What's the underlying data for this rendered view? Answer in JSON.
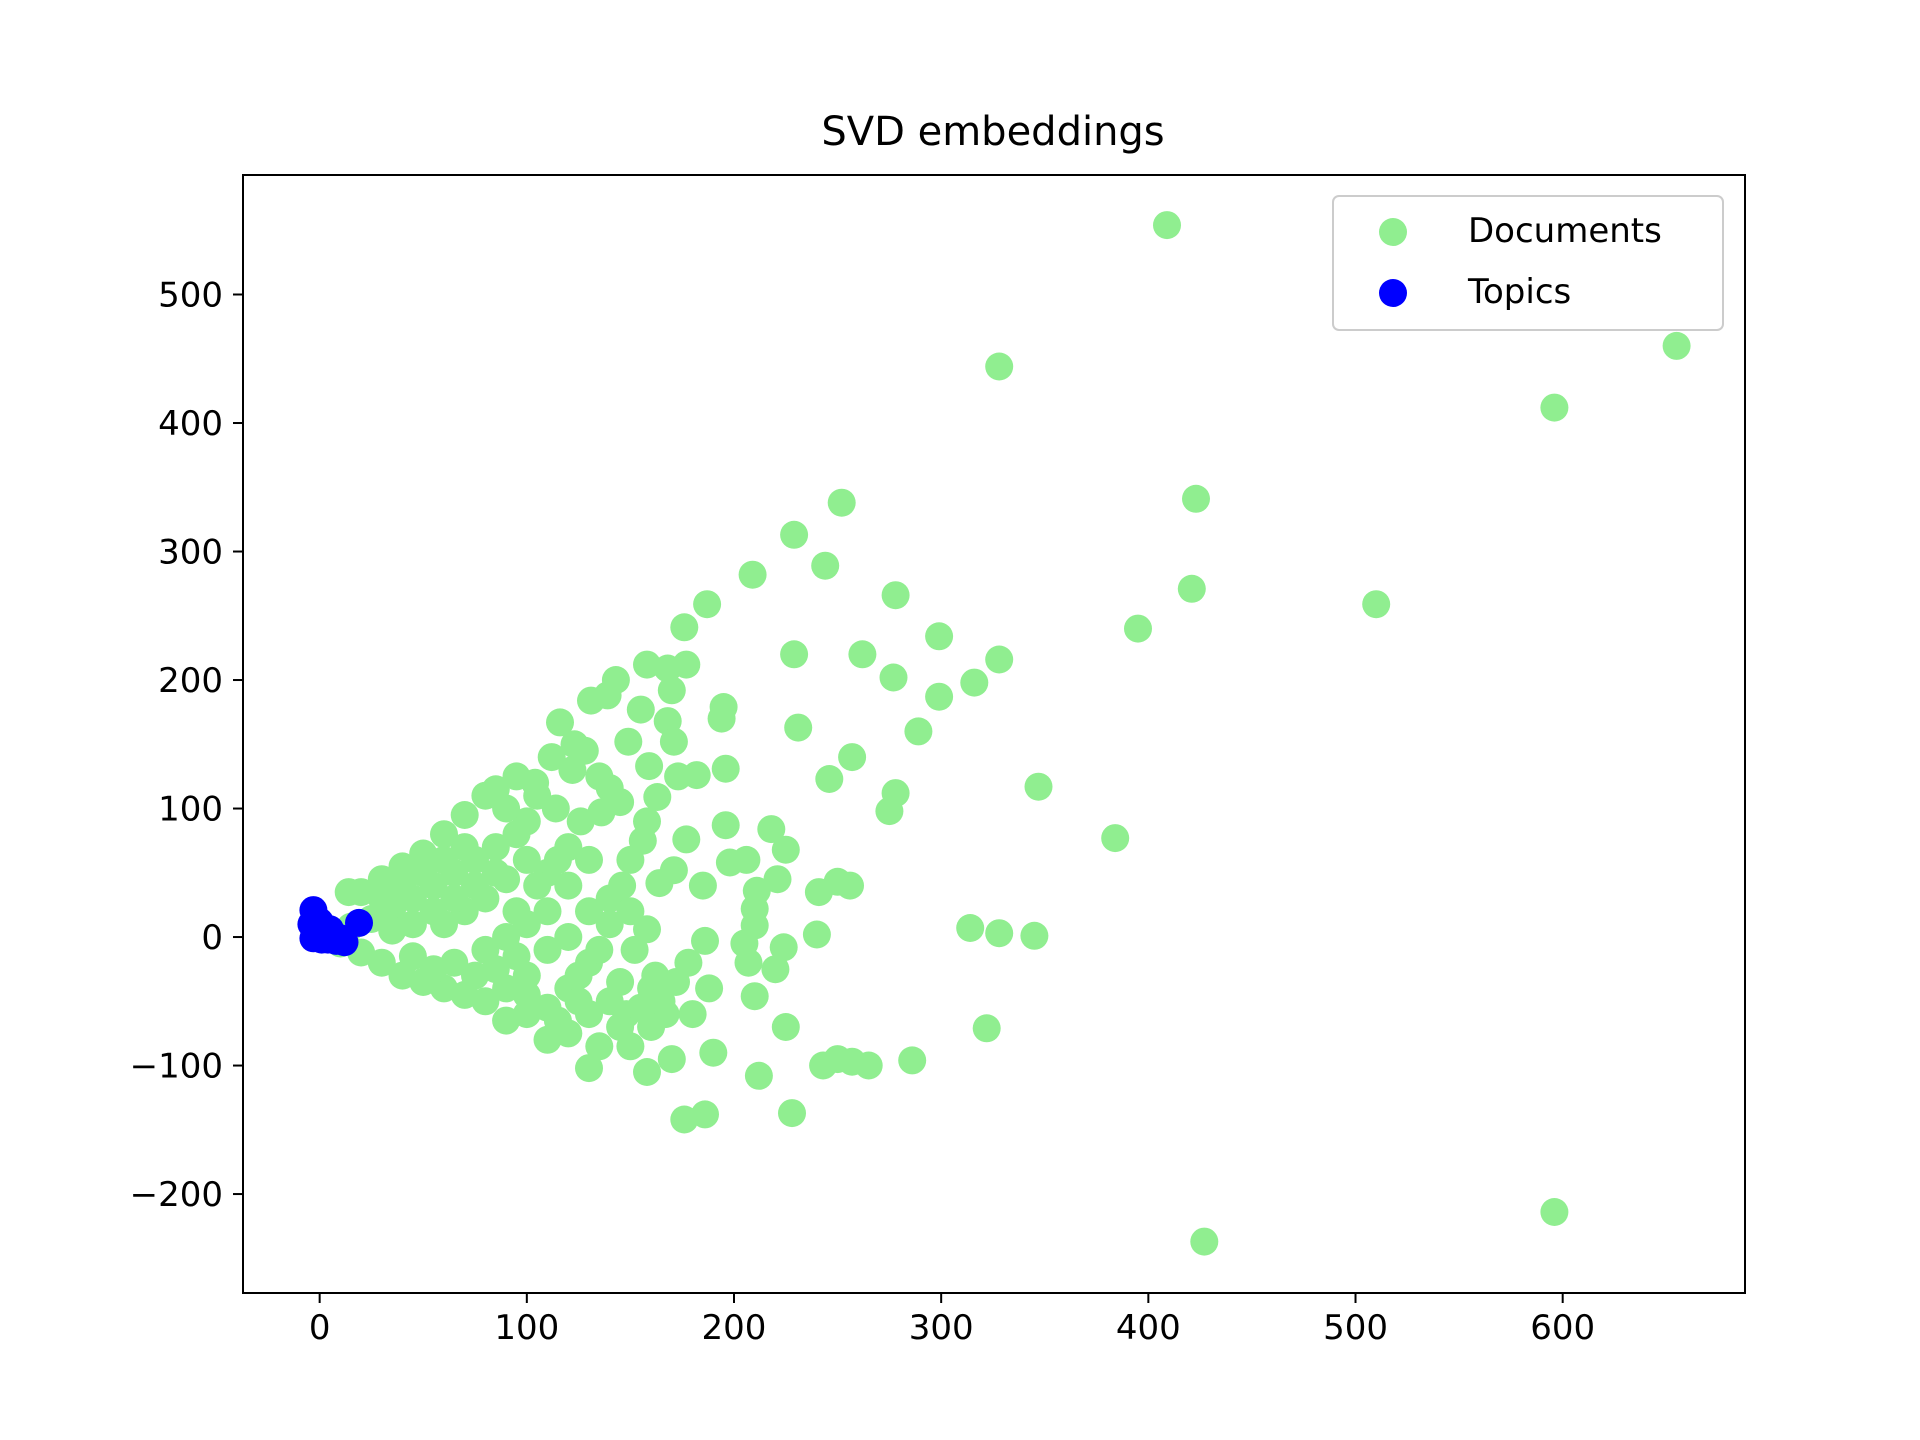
{
  "chart_data": {
    "type": "scatter",
    "title": "SVD embeddings",
    "xlabel": "",
    "ylabel": "",
    "xlim": [
      -37,
      688
    ],
    "ylim": [
      -277,
      593
    ],
    "xticks": [
      0,
      100,
      200,
      300,
      400,
      500,
      600
    ],
    "yticks": [
      -200,
      -100,
      0,
      100,
      200,
      300,
      400,
      500
    ],
    "xtick_labels": [
      "0",
      "100",
      "200",
      "300",
      "400",
      "500",
      "600"
    ],
    "ytick_labels": [
      "−200",
      "−100",
      "0",
      "100",
      "200",
      "300",
      "400",
      "500"
    ],
    "grid": false,
    "legend_position": "top-right",
    "series": [
      {
        "name": "Documents",
        "color": "#90ee90",
        "points": [
          [
            409,
            554
          ],
          [
            328,
            444
          ],
          [
            655,
            460
          ],
          [
            596,
            412
          ],
          [
            423,
            341
          ],
          [
            252,
            338
          ],
          [
            229,
            313
          ],
          [
            209,
            282
          ],
          [
            244,
            289
          ],
          [
            187,
            259
          ],
          [
            278,
            266
          ],
          [
            176,
            241
          ],
          [
            421,
            271
          ],
          [
            510,
            259
          ],
          [
            395,
            240
          ],
          [
            299,
            234
          ],
          [
            229,
            220
          ],
          [
            262,
            220
          ],
          [
            328,
            216
          ],
          [
            158,
            212
          ],
          [
            177,
            212
          ],
          [
            168,
            209
          ],
          [
            143,
            200
          ],
          [
            170,
            192
          ],
          [
            277,
            202
          ],
          [
            316,
            198
          ],
          [
            299,
            187
          ],
          [
            195,
            179
          ],
          [
            194,
            170
          ],
          [
            131,
            184
          ],
          [
            155,
            177
          ],
          [
            139,
            188
          ],
          [
            168,
            168
          ],
          [
            231,
            163
          ],
          [
            289,
            160
          ],
          [
            116,
            167
          ],
          [
            149,
            152
          ],
          [
            171,
            152
          ],
          [
            123,
            150
          ],
          [
            257,
            140
          ],
          [
            159,
            133
          ],
          [
            196,
            131
          ],
          [
            246,
            123
          ],
          [
            347,
            117
          ],
          [
            278,
            112
          ],
          [
            275,
            98
          ],
          [
            182,
            126
          ],
          [
            173,
            125
          ],
          [
            163,
            109
          ],
          [
            140,
            116
          ],
          [
            136,
            97
          ],
          [
            196,
            87
          ],
          [
            218,
            84
          ],
          [
            384,
            77
          ],
          [
            177,
            76
          ],
          [
            225,
            68
          ],
          [
            198,
            58
          ],
          [
            206,
            60
          ],
          [
            171,
            52
          ],
          [
            164,
            42
          ],
          [
            185,
            40
          ],
          [
            221,
            45
          ],
          [
            250,
            43
          ],
          [
            256,
            40
          ],
          [
            241,
            35
          ],
          [
            211,
            36
          ],
          [
            210,
            22
          ],
          [
            210,
            9
          ],
          [
            240,
            2
          ],
          [
            314,
            7
          ],
          [
            328,
            3
          ],
          [
            345,
            1
          ],
          [
            186,
            -3
          ],
          [
            205,
            -5
          ],
          [
            224,
            -8
          ],
          [
            207,
            -20
          ],
          [
            220,
            -25
          ],
          [
            160,
            -40
          ],
          [
            188,
            -40
          ],
          [
            167,
            -60
          ],
          [
            180,
            -60
          ],
          [
            210,
            -46
          ],
          [
            225,
            -70
          ],
          [
            322,
            -71
          ],
          [
            190,
            -90
          ],
          [
            170,
            -95
          ],
          [
            158,
            -105
          ],
          [
            130,
            -102
          ],
          [
            212,
            -108
          ],
          [
            243,
            -100
          ],
          [
            250,
            -95
          ],
          [
            257,
            -97
          ],
          [
            265,
            -100
          ],
          [
            286,
            -96
          ],
          [
            176,
            -142
          ],
          [
            186,
            -138
          ],
          [
            228,
            -137
          ],
          [
            427,
            -237
          ],
          [
            596,
            -214
          ],
          [
            148,
            -60
          ],
          [
            160,
            -70
          ],
          [
            150,
            -85
          ],
          [
            162,
            -30
          ],
          [
            152,
            -10
          ],
          [
            140,
            10
          ],
          [
            158,
            6
          ],
          [
            146,
            40
          ],
          [
            150,
            60
          ],
          [
            158,
            90
          ],
          [
            156,
            75
          ],
          [
            130,
            60
          ],
          [
            122,
            130
          ],
          [
            112,
            140
          ],
          [
            104,
            120
          ],
          [
            114,
            100
          ],
          [
            126,
            90
          ],
          [
            120,
            70
          ],
          [
            110,
            50
          ],
          [
            120,
            40
          ],
          [
            130,
            20
          ],
          [
            100,
            90
          ],
          [
            90,
            100
          ],
          [
            80,
            110
          ],
          [
            70,
            95
          ],
          [
            60,
            80
          ],
          [
            50,
            65
          ],
          [
            40,
            55
          ],
          [
            30,
            45
          ],
          [
            20,
            35
          ],
          [
            14,
            35
          ],
          [
            95,
            80
          ],
          [
            85,
            70
          ],
          [
            75,
            60
          ],
          [
            65,
            50
          ],
          [
            55,
            40
          ],
          [
            45,
            30
          ],
          [
            35,
            22
          ],
          [
            25,
            14
          ],
          [
            15,
            8
          ],
          [
            100,
            60
          ],
          [
            90,
            45
          ],
          [
            80,
            30
          ],
          [
            70,
            20
          ],
          [
            60,
            10
          ],
          [
            110,
            20
          ],
          [
            100,
            10
          ],
          [
            90,
            0
          ],
          [
            80,
            -10
          ],
          [
            120,
            0
          ],
          [
            130,
            -20
          ],
          [
            110,
            -10
          ],
          [
            100,
            -30
          ],
          [
            90,
            -40
          ],
          [
            80,
            -50
          ],
          [
            70,
            -45
          ],
          [
            60,
            -40
          ],
          [
            50,
            -35
          ],
          [
            40,
            -30
          ],
          [
            30,
            -20
          ],
          [
            20,
            -12
          ],
          [
            10,
            -5
          ],
          [
            120,
            -40
          ],
          [
            110,
            -55
          ],
          [
            100,
            -60
          ],
          [
            90,
            -65
          ],
          [
            130,
            -60
          ],
          [
            120,
            -75
          ],
          [
            110,
            -80
          ],
          [
            135,
            -85
          ],
          [
            140,
            -50
          ],
          [
            145,
            -35
          ],
          [
            125,
            -30
          ],
          [
            135,
            -10
          ],
          [
            140,
            30
          ],
          [
            115,
            60
          ],
          [
            105,
            110
          ],
          [
            95,
            125
          ],
          [
            85,
            115
          ],
          [
            105,
            40
          ],
          [
            95,
            20
          ],
          [
            85,
            50
          ],
          [
            75,
            40
          ],
          [
            65,
            30
          ],
          [
            55,
            20
          ],
          [
            45,
            10
          ],
          [
            35,
            5
          ],
          [
            65,
            -20
          ],
          [
            55,
            -25
          ],
          [
            45,
            -15
          ],
          [
            75,
            -30
          ],
          [
            85,
            -25
          ],
          [
            95,
            -15
          ],
          [
            70,
            70
          ],
          [
            60,
            60
          ],
          [
            50,
            50
          ],
          [
            40,
            40
          ],
          [
            30,
            30
          ],
          [
            100,
            -45
          ],
          [
            115,
            -65
          ],
          [
            125,
            -50
          ],
          [
            145,
            -70
          ],
          [
            155,
            -55
          ],
          [
            165,
            -50
          ],
          [
            172,
            -35
          ],
          [
            178,
            -20
          ],
          [
            150,
            20
          ],
          [
            145,
            105
          ],
          [
            135,
            125
          ],
          [
            128,
            145
          ]
        ]
      },
      {
        "name": "Topics",
        "color": "#0000ff",
        "points": [
          [
            -3,
            21
          ],
          [
            -4,
            10
          ],
          [
            -2,
            3
          ],
          [
            0,
            12
          ],
          [
            2,
            2
          ],
          [
            4,
            -2
          ],
          [
            6,
            3
          ],
          [
            8,
            -3
          ],
          [
            10,
            -1
          ],
          [
            12,
            -4
          ],
          [
            -3,
            -1
          ],
          [
            1,
            -2
          ],
          [
            19,
            11
          ],
          [
            5,
            6
          ]
        ]
      }
    ]
  }
}
